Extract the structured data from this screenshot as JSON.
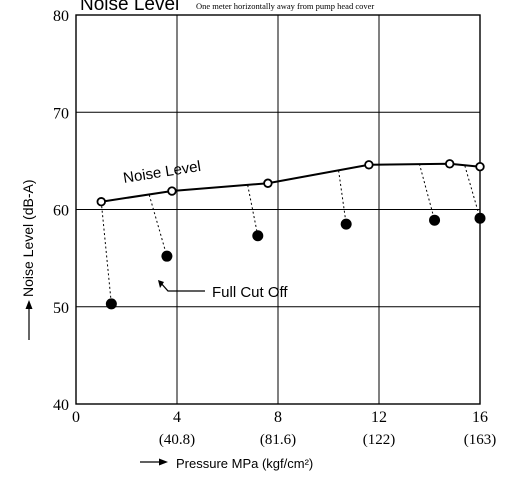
{
  "chart_data": {
    "type": "line",
    "title": "Noise Level",
    "subtitle": "One meter horizontally away from pump head cover",
    "xlabel": "Pressure MPa (kgf/cm²)",
    "ylabel": "Noise Level (dB-A)",
    "xlim": [
      0,
      16
    ],
    "ylim": [
      40,
      80
    ],
    "x_ticks": [
      {
        "value": 0,
        "label": "0",
        "sub": ""
      },
      {
        "value": 4,
        "label": "4",
        "sub": "(40.8)"
      },
      {
        "value": 8,
        "label": "8",
        "sub": "(81.6)"
      },
      {
        "value": 12,
        "label": "12",
        "sub": "(122)"
      },
      {
        "value": 16,
        "label": "16",
        "sub": "(163)"
      }
    ],
    "y_ticks": [
      {
        "value": 40,
        "label": "40"
      },
      {
        "value": 50,
        "label": "50"
      },
      {
        "value": 60,
        "label": "60"
      },
      {
        "value": 70,
        "label": "70"
      },
      {
        "value": 80,
        "label": "80"
      }
    ],
    "grid": true,
    "series": [
      {
        "name": "Noise Level",
        "style": "line-open-circles",
        "color": "#000000",
        "x": [
          1.0,
          3.8,
          7.6,
          11.6,
          14.8,
          16.0
        ],
        "y": [
          60.8,
          61.9,
          62.7,
          64.6,
          64.7,
          64.4
        ]
      },
      {
        "name": "Full Cut Off",
        "style": "filled-circles",
        "color": "#000000",
        "x": [
          1.4,
          3.6,
          7.2,
          10.7,
          14.2,
          16.0
        ],
        "y": [
          50.3,
          55.2,
          57.3,
          58.5,
          58.9,
          59.1
        ]
      }
    ],
    "connectors": [
      {
        "from": [
          1.0,
          60.8
        ],
        "to": [
          1.4,
          50.3
        ]
      },
      {
        "from": [
          2.9,
          61.5
        ],
        "to": [
          3.6,
          55.2
        ]
      },
      {
        "from": [
          6.8,
          62.5
        ],
        "to": [
          7.2,
          57.3
        ]
      },
      {
        "from": [
          10.4,
          64.0
        ],
        "to": [
          10.7,
          58.5
        ]
      },
      {
        "from": [
          13.6,
          64.7
        ],
        "to": [
          14.2,
          58.9
        ]
      },
      {
        "from": [
          15.4,
          64.5
        ],
        "to": [
          16.0,
          59.1
        ]
      }
    ],
    "annotations": {
      "noise_label": "Noise Level",
      "cutoff_label": "Full Cut Off"
    }
  }
}
